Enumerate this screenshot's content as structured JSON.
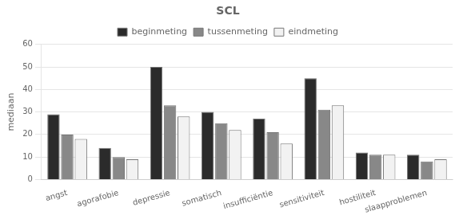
{
  "chart_data": {
    "type": "bar",
    "title": "SCL",
    "ylabel": "mediaan",
    "categories": [
      "angst",
      "agorafobie",
      "depressie",
      "somatisch",
      "insufficiëntie",
      "sensitiviteit",
      "hostiliteit",
      "slaapproblemen"
    ],
    "series": [
      {
        "name": "beginmeting",
        "color": "#2b2b2b",
        "values": [
          29,
          14,
          50,
          30,
          27,
          45,
          12,
          11
        ]
      },
      {
        "name": "tussenmeting",
        "color": "#888888",
        "values": [
          20,
          10,
          33,
          25,
          21,
          31,
          11,
          8
        ]
      },
      {
        "name": "eindmeting",
        "color": "#f2f2f2",
        "values": [
          18,
          9,
          28,
          22,
          16,
          33,
          11,
          9
        ]
      }
    ],
    "ylim": [
      0,
      60
    ],
    "yticks": [
      0,
      10,
      20,
      30,
      40,
      50,
      60
    ],
    "grid": true,
    "legend": "top"
  }
}
